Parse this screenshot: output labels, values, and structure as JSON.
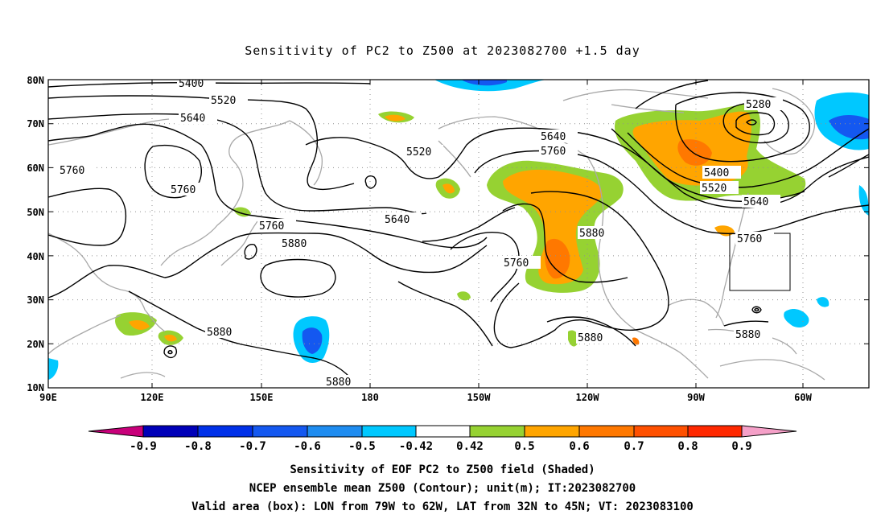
{
  "title": "Sensitivity of PC2 to Z500 at 2023082700 +1.5 day",
  "lat_labels": [
    "80N",
    "70N",
    "60N",
    "50N",
    "40N",
    "30N",
    "20N",
    "10N"
  ],
  "lon_labels": [
    "90E",
    "120E",
    "150E",
    "180",
    "150W",
    "120W",
    "90W",
    "60W"
  ],
  "contour_labels": [
    {
      "text": "5400"
    },
    {
      "text": "5520"
    },
    {
      "text": "5640"
    },
    {
      "text": "5760"
    },
    {
      "text": "5760"
    },
    {
      "text": "5520"
    },
    {
      "text": "5760"
    },
    {
      "text": "5880"
    },
    {
      "text": "5640"
    },
    {
      "text": "5760"
    },
    {
      "text": "5640"
    },
    {
      "text": "5760"
    },
    {
      "text": "5880"
    },
    {
      "text": "5280"
    },
    {
      "text": "5400"
    },
    {
      "text": "5520"
    },
    {
      "text": "5640"
    },
    {
      "text": "5760"
    },
    {
      "text": "5880"
    },
    {
      "text": "5880"
    },
    {
      "text": "5880"
    },
    {
      "text": "5880"
    }
  ],
  "colorbar": {
    "colors": [
      "#c8007a",
      "#0000b8",
      "#0030e8",
      "#1458f0",
      "#1e8cf0",
      "#00c8ff",
      "#ffffff",
      "#96d232",
      "#ffa500",
      "#ff7800",
      "#ff5000",
      "#ff2800",
      "#ff0000",
      "#f5a0c8"
    ],
    "labels": [
      "-0.9",
      "-0.8",
      "-0.7",
      "-0.6",
      "-0.5",
      "-0.42",
      "0.42",
      "0.5",
      "0.6",
      "0.7",
      "0.8",
      "0.9"
    ]
  },
  "captions": [
    "Sensitivity of EOF PC2 to Z500 field (Shaded)",
    "NCEP ensemble mean Z500 (Contour); unit(m); IT:2023082700",
    "Valid area (box): LON from 79W to 62W, LAT from 32N to 45N; VT: 2023083100"
  ]
}
